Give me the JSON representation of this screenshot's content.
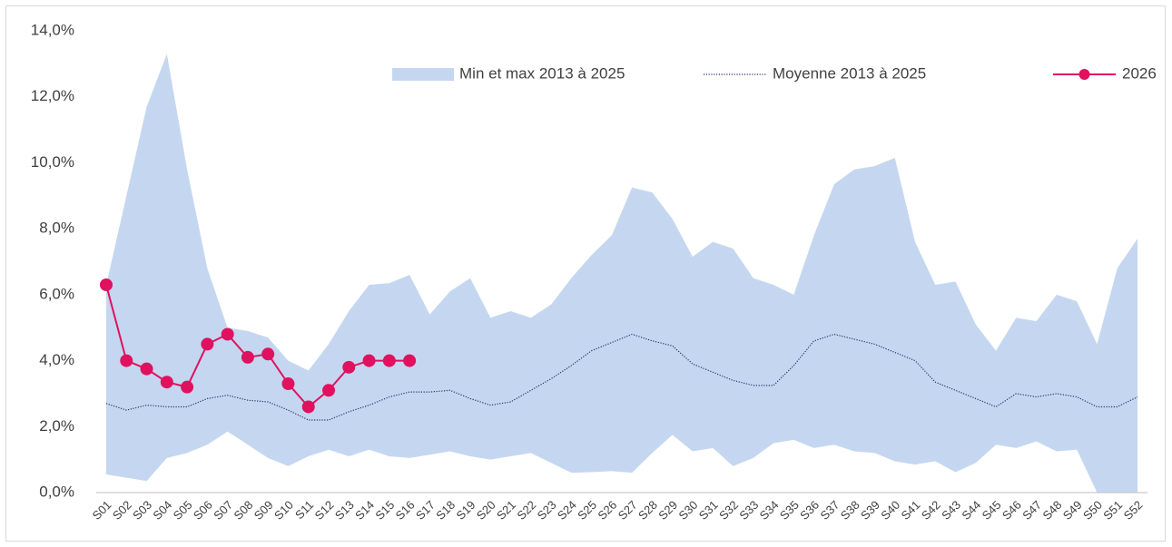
{
  "chart_data": {
    "type": "line",
    "categories": [
      "S01",
      "S02",
      "S03",
      "S04",
      "S05",
      "S06",
      "S07",
      "S08",
      "S09",
      "S10",
      "S11",
      "S12",
      "S13",
      "S14",
      "S15",
      "S16",
      "S17",
      "S18",
      "S19",
      "S20",
      "S21",
      "S22",
      "S23",
      "S24",
      "S25",
      "S26",
      "S27",
      "S28",
      "S29",
      "S30",
      "S31",
      "S32",
      "S33",
      "S34",
      "S35",
      "S36",
      "S37",
      "S38",
      "S39",
      "S40",
      "S41",
      "S42",
      "S43",
      "S44",
      "S45",
      "S46",
      "S47",
      "S48",
      "S49",
      "S50",
      "S51",
      "S52"
    ],
    "series": [
      {
        "name": "Min et max 2013 à 2025",
        "kind": "band",
        "color": "#c5d7f0",
        "high": [
          6.3,
          9.0,
          11.7,
          13.3,
          9.8,
          6.8,
          5.0,
          4.9,
          4.7,
          4.0,
          3.7,
          4.5,
          5.5,
          6.3,
          6.35,
          6.6,
          5.4,
          6.1,
          6.5,
          5.3,
          5.5,
          5.3,
          5.7,
          6.5,
          7.2,
          7.8,
          9.25,
          9.1,
          8.3,
          7.15,
          7.6,
          7.4,
          6.5,
          6.3,
          6.0,
          7.8,
          9.35,
          9.8,
          9.9,
          10.15,
          7.6,
          6.3,
          6.4,
          5.1,
          4.3,
          5.3,
          5.2,
          6.0,
          5.8,
          4.5,
          6.8,
          7.7
        ],
        "low": [
          0.55,
          0.45,
          0.35,
          1.05,
          1.2,
          1.45,
          1.85,
          1.45,
          1.05,
          0.8,
          1.1,
          1.3,
          1.1,
          1.3,
          1.1,
          1.05,
          1.15,
          1.25,
          1.1,
          1.0,
          1.1,
          1.2,
          0.9,
          0.6,
          0.62,
          0.65,
          0.6,
          1.2,
          1.75,
          1.25,
          1.35,
          0.8,
          1.05,
          1.5,
          1.6,
          1.35,
          1.45,
          1.25,
          1.2,
          0.95,
          0.85,
          0.95,
          0.62,
          0.9,
          1.45,
          1.35,
          1.55,
          1.25,
          1.3,
          0.0,
          0.0,
          0.0
        ]
      },
      {
        "name": "Moyenne 2013 à 2025",
        "kind": "dotted",
        "color": "#1f3864",
        "values": [
          2.7,
          2.5,
          2.65,
          2.6,
          2.6,
          2.85,
          2.95,
          2.8,
          2.75,
          2.5,
          2.2,
          2.2,
          2.45,
          2.65,
          2.9,
          3.05,
          3.05,
          3.1,
          2.85,
          2.65,
          2.75,
          3.1,
          3.45,
          3.85,
          4.3,
          4.55,
          4.8,
          4.6,
          4.45,
          3.9,
          3.65,
          3.4,
          3.25,
          3.25,
          3.85,
          4.6,
          4.8,
          4.65,
          4.5,
          4.25,
          4.0,
          3.35,
          3.1,
          2.85,
          2.6,
          3.0,
          2.9,
          3.0,
          2.9,
          2.6,
          2.6,
          2.9
        ]
      },
      {
        "name": "2026",
        "kind": "markers",
        "color": "#e0115f",
        "values": [
          6.3,
          4.0,
          3.75,
          3.35,
          3.2,
          4.5,
          4.8,
          4.1,
          4.2,
          3.3,
          2.6,
          3.1,
          3.8,
          4.0,
          4.0,
          4.0,
          null,
          null,
          null,
          null,
          null,
          null,
          null,
          null,
          null,
          null,
          null,
          null,
          null,
          null,
          null,
          null,
          null,
          null,
          null,
          null,
          null,
          null,
          null,
          null,
          null,
          null,
          null,
          null,
          null,
          null,
          null,
          null,
          null,
          null,
          null,
          null
        ]
      }
    ],
    "ylim": [
      0,
      14
    ],
    "yticks": [
      {
        "value": 0,
        "label": "0,0%"
      },
      {
        "value": 2,
        "label": "2,0%"
      },
      {
        "value": 4,
        "label": "4,0%"
      },
      {
        "value": 6,
        "label": "6,0%"
      },
      {
        "value": 8,
        "label": "8,0%"
      },
      {
        "value": 10,
        "label": "10,0%"
      },
      {
        "value": 12,
        "label": "12,0%"
      },
      {
        "value": 14,
        "label": "14,0%"
      }
    ],
    "grid": false,
    "legend": "top-right"
  }
}
